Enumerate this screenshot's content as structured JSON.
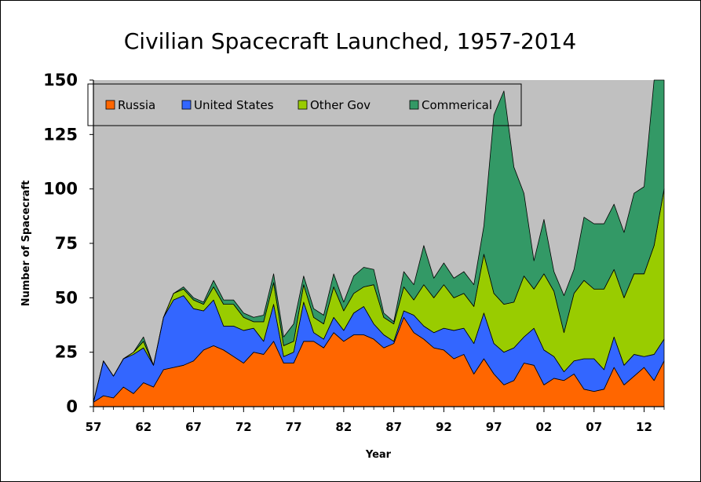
{
  "chart_data": {
    "type": "area",
    "stacked": true,
    "title": "Civilian Spacecraft Launched, 1957-2014",
    "xlabel": "Year",
    "ylabel": "Number of Spacecraft",
    "ylim": [
      0,
      150
    ],
    "yticks": [
      0,
      25,
      50,
      75,
      100,
      125,
      150
    ],
    "xlim": [
      1957,
      2014
    ],
    "xticks": [
      {
        "year": 1957,
        "label": "57"
      },
      {
        "year": 1962,
        "label": "62"
      },
      {
        "year": 1967,
        "label": "67"
      },
      {
        "year": 1972,
        "label": "72"
      },
      {
        "year": 1977,
        "label": "77"
      },
      {
        "year": 1982,
        "label": "82"
      },
      {
        "year": 1987,
        "label": "87"
      },
      {
        "year": 1992,
        "label": "92"
      },
      {
        "year": 1997,
        "label": "97"
      },
      {
        "year": 2002,
        "label": "02"
      },
      {
        "year": 2007,
        "label": "07"
      },
      {
        "year": 2012,
        "label": "12"
      }
    ],
    "grid": false,
    "legend_position": "top",
    "plot_background": "#c0c0c0",
    "x": [
      1957,
      1958,
      1959,
      1960,
      1961,
      1962,
      1963,
      1964,
      1965,
      1966,
      1967,
      1968,
      1969,
      1970,
      1971,
      1972,
      1973,
      1974,
      1975,
      1976,
      1977,
      1978,
      1979,
      1980,
      1981,
      1982,
      1983,
      1984,
      1985,
      1986,
      1987,
      1988,
      1989,
      1990,
      1991,
      1992,
      1993,
      1994,
      1995,
      1996,
      1997,
      1998,
      1999,
      2000,
      2001,
      2002,
      2003,
      2004,
      2005,
      2006,
      2007,
      2008,
      2009,
      2010,
      2011,
      2012,
      2013,
      2014
    ],
    "series": [
      {
        "name": "Russia",
        "color": "#ff6600",
        "values": [
          2,
          5,
          4,
          9,
          6,
          11,
          9,
          17,
          18,
          19,
          21,
          26,
          28,
          26,
          23,
          20,
          25,
          24,
          30,
          20,
          20,
          30,
          30,
          27,
          34,
          30,
          33,
          33,
          31,
          27,
          29,
          41,
          34,
          31,
          27,
          26,
          22,
          24,
          15,
          22,
          15,
          10,
          12,
          20,
          19,
          10,
          13,
          12,
          15,
          8,
          7,
          8,
          18,
          10,
          14,
          18,
          12,
          21
        ]
      },
      {
        "name": "United States",
        "color": "#3366ff",
        "values": [
          0,
          16,
          10,
          13,
          18,
          16,
          10,
          24,
          31,
          32,
          24,
          18,
          21,
          11,
          14,
          15,
          11,
          6,
          17,
          3,
          5,
          18,
          4,
          4,
          7,
          5,
          10,
          13,
          7,
          6,
          1,
          3,
          8,
          6,
          7,
          10,
          13,
          12,
          14,
          21,
          14,
          15,
          15,
          12,
          17,
          16,
          10,
          4,
          6,
          14,
          15,
          9,
          14,
          9,
          10,
          5,
          12,
          10
        ]
      },
      {
        "name": "Other Gov",
        "color": "#99cc00",
        "values": [
          0,
          0,
          0,
          0,
          1,
          3,
          0,
          0,
          3,
          3,
          4,
          3,
          6,
          10,
          10,
          6,
          3,
          9,
          10,
          5,
          5,
          8,
          7,
          7,
          14,
          9,
          9,
          9,
          18,
          8,
          8,
          11,
          7,
          19,
          16,
          20,
          15,
          16,
          17,
          27,
          23,
          22,
          21,
          28,
          18,
          35,
          30,
          18,
          31,
          36,
          32,
          37,
          31,
          31,
          37,
          38,
          50,
          69
        ]
      },
      {
        "name": "Commerical",
        "color": "#339966",
        "values": [
          0,
          0,
          0,
          0,
          0,
          2,
          0,
          0,
          0,
          1,
          1,
          1,
          3,
          2,
          2,
          2,
          2,
          3,
          4,
          4,
          8,
          4,
          4,
          4,
          6,
          4,
          8,
          9,
          7,
          2,
          1,
          7,
          7,
          18,
          9,
          10,
          9,
          10,
          10,
          13,
          82,
          98,
          62,
          38,
          13,
          25,
          9,
          17,
          11,
          29,
          30,
          30,
          30,
          30,
          37,
          40,
          78,
          52
        ]
      }
    ]
  }
}
